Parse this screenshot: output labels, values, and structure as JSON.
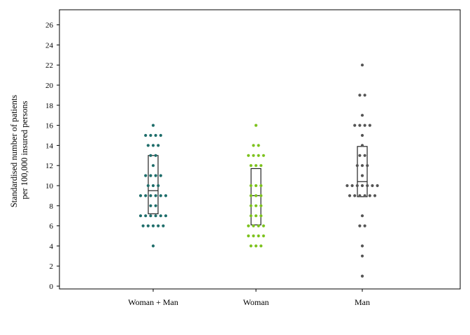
{
  "chart_data": {
    "type": "scatter",
    "subtype": "dot-strip-with-box",
    "ylabel_lines": [
      "Standardised number of patients",
      "per 100,000 insured persons"
    ],
    "yticks": [
      0,
      2,
      4,
      6,
      8,
      10,
      12,
      14,
      16,
      18,
      20,
      22,
      24,
      26
    ],
    "ylim": [
      0,
      27.5
    ],
    "grid": false,
    "categories": [
      "Woman + Man",
      "Woman",
      "Man"
    ],
    "series": [
      {
        "category": "Woman + Man",
        "color": "#1f6e6b",
        "values": [
          4,
          6,
          6,
          6,
          6,
          6,
          7,
          7,
          7,
          7,
          7,
          7,
          8,
          8,
          9,
          9,
          9,
          9,
          9,
          9,
          10,
          10,
          10,
          11,
          11,
          11,
          11,
          12,
          13,
          13,
          14,
          14,
          14,
          15,
          15,
          15,
          15,
          16
        ],
        "box": {
          "q1": 7.2,
          "median": 9.5,
          "q3": 13.0
        }
      },
      {
        "category": "Woman",
        "color": "#7dc21e",
        "values": [
          4,
          4,
          4,
          5,
          5,
          5,
          5,
          6,
          6,
          6,
          6,
          7,
          7,
          7,
          8,
          8,
          8,
          9,
          9,
          9,
          10,
          10,
          10,
          12,
          12,
          12,
          13,
          13,
          13,
          13,
          14,
          14,
          16
        ],
        "box": {
          "q1": 6.1,
          "median": 9.0,
          "q3": 11.7
        }
      },
      {
        "category": "Man",
        "color": "#555555",
        "values": [
          1,
          3,
          4,
          6,
          6,
          7,
          9,
          9,
          9,
          9,
          9,
          9,
          10,
          10,
          10,
          10,
          10,
          10,
          10,
          11,
          12,
          12,
          12,
          13,
          13,
          14,
          15,
          16,
          16,
          16,
          16,
          17,
          19,
          19,
          22
        ],
        "box": {
          "q1": 8.9,
          "median": 10.4,
          "q3": 13.9
        }
      }
    ]
  }
}
